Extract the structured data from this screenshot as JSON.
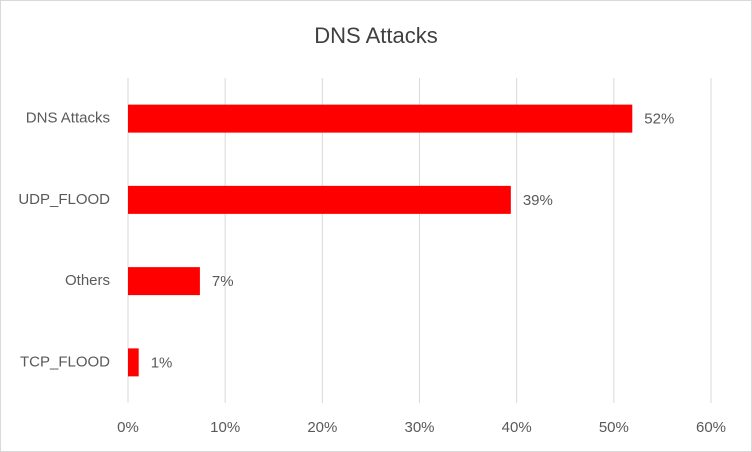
{
  "chart_data": {
    "type": "hbar",
    "title": "DNS Attacks",
    "categories": [
      "DNS Attacks",
      "UDP_FLOOD",
      "Others",
      "TCP_FLOOD"
    ],
    "values": [
      51.9,
      39.4,
      7.4,
      1.1
    ],
    "value_labels": [
      "52%",
      "39%",
      "7%",
      "1%"
    ],
    "color": "#ff0000",
    "xlim": [
      0,
      60
    ],
    "xticks": [
      {
        "value": 0,
        "label": "0%"
      },
      {
        "value": 10,
        "label": "10%"
      },
      {
        "value": 20,
        "label": "20%"
      },
      {
        "value": 30,
        "label": "30%"
      },
      {
        "value": 40,
        "label": "40%"
      },
      {
        "value": 50,
        "label": "50%"
      },
      {
        "value": 60,
        "label": "60%"
      }
    ],
    "grid": true
  }
}
